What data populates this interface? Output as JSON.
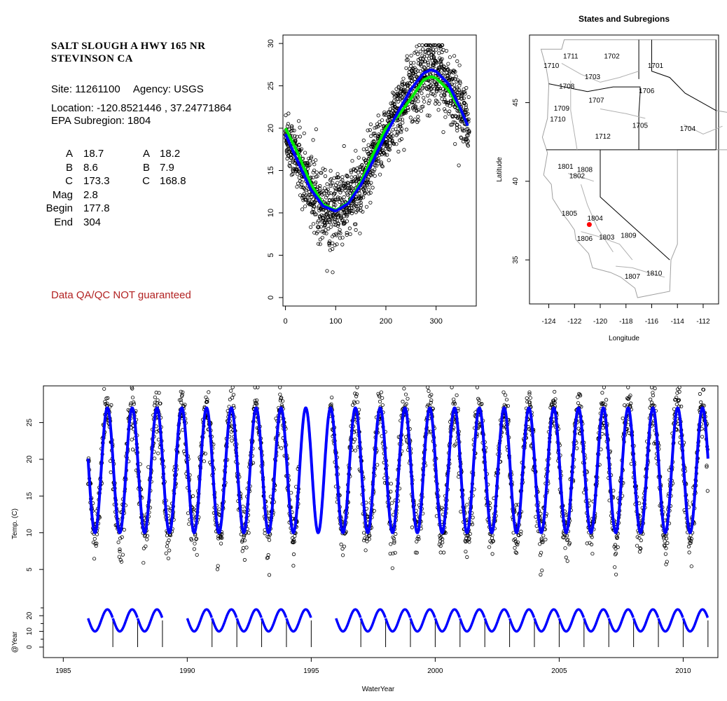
{
  "site": {
    "title_line1": "SALT SLOUGH A HWY 165 NR",
    "title_line2": "STEVINSON CA",
    "site_label": "Site:",
    "site_id": "11261100",
    "agency_label": "Agency:",
    "agency": "USGS",
    "location_label": "Location:",
    "location": "-120.8521446 , 37.24771864",
    "subregion_label": "EPA Subregion:",
    "subregion": "1804",
    "params_col1": [
      {
        "key": "A",
        "value": "18.7"
      },
      {
        "key": "B",
        "value": "8.6"
      },
      {
        "key": "C",
        "value": "173.3"
      },
      {
        "key": "Mag",
        "value": "2.8"
      },
      {
        "key": "Begin",
        "value": "177.8"
      },
      {
        "key": "End",
        "value": "304"
      }
    ],
    "params_col2": [
      {
        "key": "A",
        "value": "18.2"
      },
      {
        "key": "B",
        "value": "7.9"
      },
      {
        "key": "C",
        "value": "168.8"
      }
    ],
    "disclaimer": "Data QA/QC NOT guaranteed"
  },
  "chart_data": [
    {
      "type": "scatter",
      "title": "",
      "xlabel": "",
      "ylabel": "",
      "xlim": [
        -5,
        380
      ],
      "ylim": [
        -1,
        31
      ],
      "xticks": [
        0,
        100,
        200,
        300
      ],
      "yticks": [
        0,
        5,
        10,
        15,
        20,
        25,
        30
      ],
      "series": [
        {
          "style": "points",
          "color": "#000000",
          "note": "daily water temperature by day of water year (dense point cloud)"
        },
        {
          "style": "line",
          "color": "#00ee00",
          "x": [
            0,
            25,
            50,
            75,
            100,
            125,
            150,
            175,
            200,
            225,
            250,
            275,
            290,
            300,
            325,
            350,
            365
          ],
          "y": [
            20,
            17,
            13.5,
            11,
            10.3,
            11.2,
            13.6,
            17,
            20,
            21.5,
            23.5,
            25.7,
            26.1,
            25.9,
            24.5,
            22,
            20
          ]
        },
        {
          "style": "line",
          "color": "#0000ff",
          "x": [
            0,
            25,
            50,
            75,
            100,
            125,
            150,
            175,
            200,
            225,
            250,
            275,
            290,
            300,
            325,
            350,
            365
          ],
          "y": [
            19.3,
            16,
            12.8,
            10.8,
            10.2,
            11.1,
            13.3,
            16.2,
            19.3,
            22,
            24.6,
            26.5,
            26.9,
            26.7,
            25.2,
            22.1,
            20
          ]
        }
      ]
    },
    {
      "type": "map",
      "title": "States and Subregions",
      "xlabel": "Longitude",
      "ylabel": "Latitude",
      "xlim": [
        -125.5,
        -110.8
      ],
      "ylim": [
        32.2,
        49.3
      ],
      "xticks": [
        -124,
        -122,
        -120,
        -118,
        -116,
        -114,
        -112
      ],
      "yticks": [
        35,
        40,
        45
      ],
      "site_point": {
        "lon": -120.85,
        "lat": 37.25,
        "color": "#ff0000"
      },
      "region_labels": [
        {
          "text": "1711",
          "lon": -122.3,
          "lat": 47.8
        },
        {
          "text": "1710",
          "lon": -123.8,
          "lat": 47.2
        },
        {
          "text": "1702",
          "lon": -119.1,
          "lat": 47.8
        },
        {
          "text": "1701",
          "lon": -115.7,
          "lat": 47.2
        },
        {
          "text": "1703",
          "lon": -120.6,
          "lat": 46.5
        },
        {
          "text": "1708",
          "lon": -122.6,
          "lat": 45.9
        },
        {
          "text": "1706",
          "lon": -116.4,
          "lat": 45.6
        },
        {
          "text": "1707",
          "lon": -120.3,
          "lat": 45.0
        },
        {
          "text": "1709",
          "lon": -123.0,
          "lat": 44.5
        },
        {
          "text": "1710",
          "lon": -123.3,
          "lat": 43.8
        },
        {
          "text": "1705",
          "lon": -116.9,
          "lat": 43.4
        },
        {
          "text": "1704",
          "lon": -113.2,
          "lat": 43.2
        },
        {
          "text": "1712",
          "lon": -119.8,
          "lat": 42.7
        },
        {
          "text": "1801",
          "lon": -122.7,
          "lat": 40.8
        },
        {
          "text": "1808",
          "lon": -121.2,
          "lat": 40.6
        },
        {
          "text": "1802",
          "lon": -121.8,
          "lat": 40.2
        },
        {
          "text": "1805",
          "lon": -122.4,
          "lat": 37.8
        },
        {
          "text": "1804",
          "lon": -120.4,
          "lat": 37.5
        },
        {
          "text": "1806",
          "lon": -121.2,
          "lat": 36.2
        },
        {
          "text": "1803",
          "lon": -119.5,
          "lat": 36.3
        },
        {
          "text": "1809",
          "lon": -117.8,
          "lat": 36.4
        },
        {
          "text": "1807",
          "lon": -117.5,
          "lat": 33.8
        },
        {
          "text": "1810",
          "lon": -115.8,
          "lat": 34.0
        }
      ]
    },
    {
      "type": "line",
      "title": "",
      "xlabel": "WaterYear",
      "ylabel": "Temp. (C)",
      "ylabel_lower": "@Year",
      "xlim": [
        1984.2,
        2011.4
      ],
      "ylim": [
        -7,
        30
      ],
      "xticks": [
        1985,
        1990,
        1995,
        2000,
        2005,
        2010
      ],
      "yticks_upper": [
        5,
        10,
        15,
        20,
        25
      ],
      "yticks_lower": [
        0,
        10,
        20
      ],
      "series": [
        {
          "name": "",
          "style": "points",
          "color": "#000000",
          "start": 1986.0,
          "end": 2011.0,
          "note": "observed daily temperatures"
        },
        {
          "name": "",
          "style": "line",
          "color": "#0000ff",
          "start": 1986.0,
          "end": 2011.0,
          "note": "fitted sinusoid: mean 18.5, amplitude 8.5, peak ~0.78 of water year"
        }
      ],
      "annual_fit_years": [
        1986,
        1987,
        1988,
        1990,
        1991,
        1992,
        1993,
        1994,
        1996,
        1997,
        1998,
        1999,
        2000,
        2001,
        2002,
        2003,
        2004,
        2005,
        2006,
        2007,
        2008,
        2009,
        2010
      ]
    }
  ]
}
